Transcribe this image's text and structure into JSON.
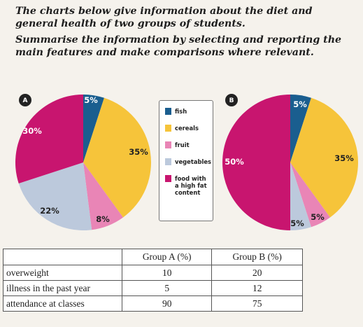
{
  "instructions": {
    "line1": "The charts below give information about the diet and general health of two groups of students.",
    "line2": "Summarise the information by selecting and reporting the main features and make comparisons where relevant."
  },
  "colors": {
    "fish": "#1a5e8f",
    "cereals": "#f6c43a",
    "fruit": "#e985b6",
    "vegetables": "#bcc9dc",
    "high_fat": "#c8156f"
  },
  "legend": {
    "items": [
      {
        "label": "fish",
        "color": "#1a5e8f"
      },
      {
        "label": "cereals",
        "color": "#f6c43a"
      },
      {
        "label": "fruit",
        "color": "#e985b6"
      },
      {
        "label": "vegetables",
        "color": "#bcc9dc"
      },
      {
        "label": "food with a high fat content",
        "color": "#c8156f"
      }
    ]
  },
  "chart_data": [
    {
      "type": "pie",
      "badge": "A",
      "categories": [
        "fish",
        "cereals",
        "fruit",
        "vegetables",
        "food with a high fat content"
      ],
      "values": [
        5,
        35,
        8,
        22,
        30
      ],
      "labels": [
        "5%",
        "35%",
        "8%",
        "22%",
        "30%"
      ]
    },
    {
      "type": "pie",
      "badge": "B",
      "categories": [
        "fish",
        "cereals",
        "fruit",
        "vegetables",
        "food with a high fat content"
      ],
      "values": [
        5,
        35,
        5,
        5,
        50
      ],
      "labels": [
        "5%",
        "35%",
        "5%",
        "5%",
        "50%"
      ]
    },
    {
      "type": "table",
      "columns": [
        "",
        "Group A (%)",
        "Group B (%)"
      ],
      "rows": [
        {
          "label": "overweight",
          "a": "10",
          "b": "20"
        },
        {
          "label": "illness in the past year",
          "a": "5",
          "b": "12"
        },
        {
          "label": "attendance at classes",
          "a": "90",
          "b": "75"
        }
      ]
    }
  ]
}
